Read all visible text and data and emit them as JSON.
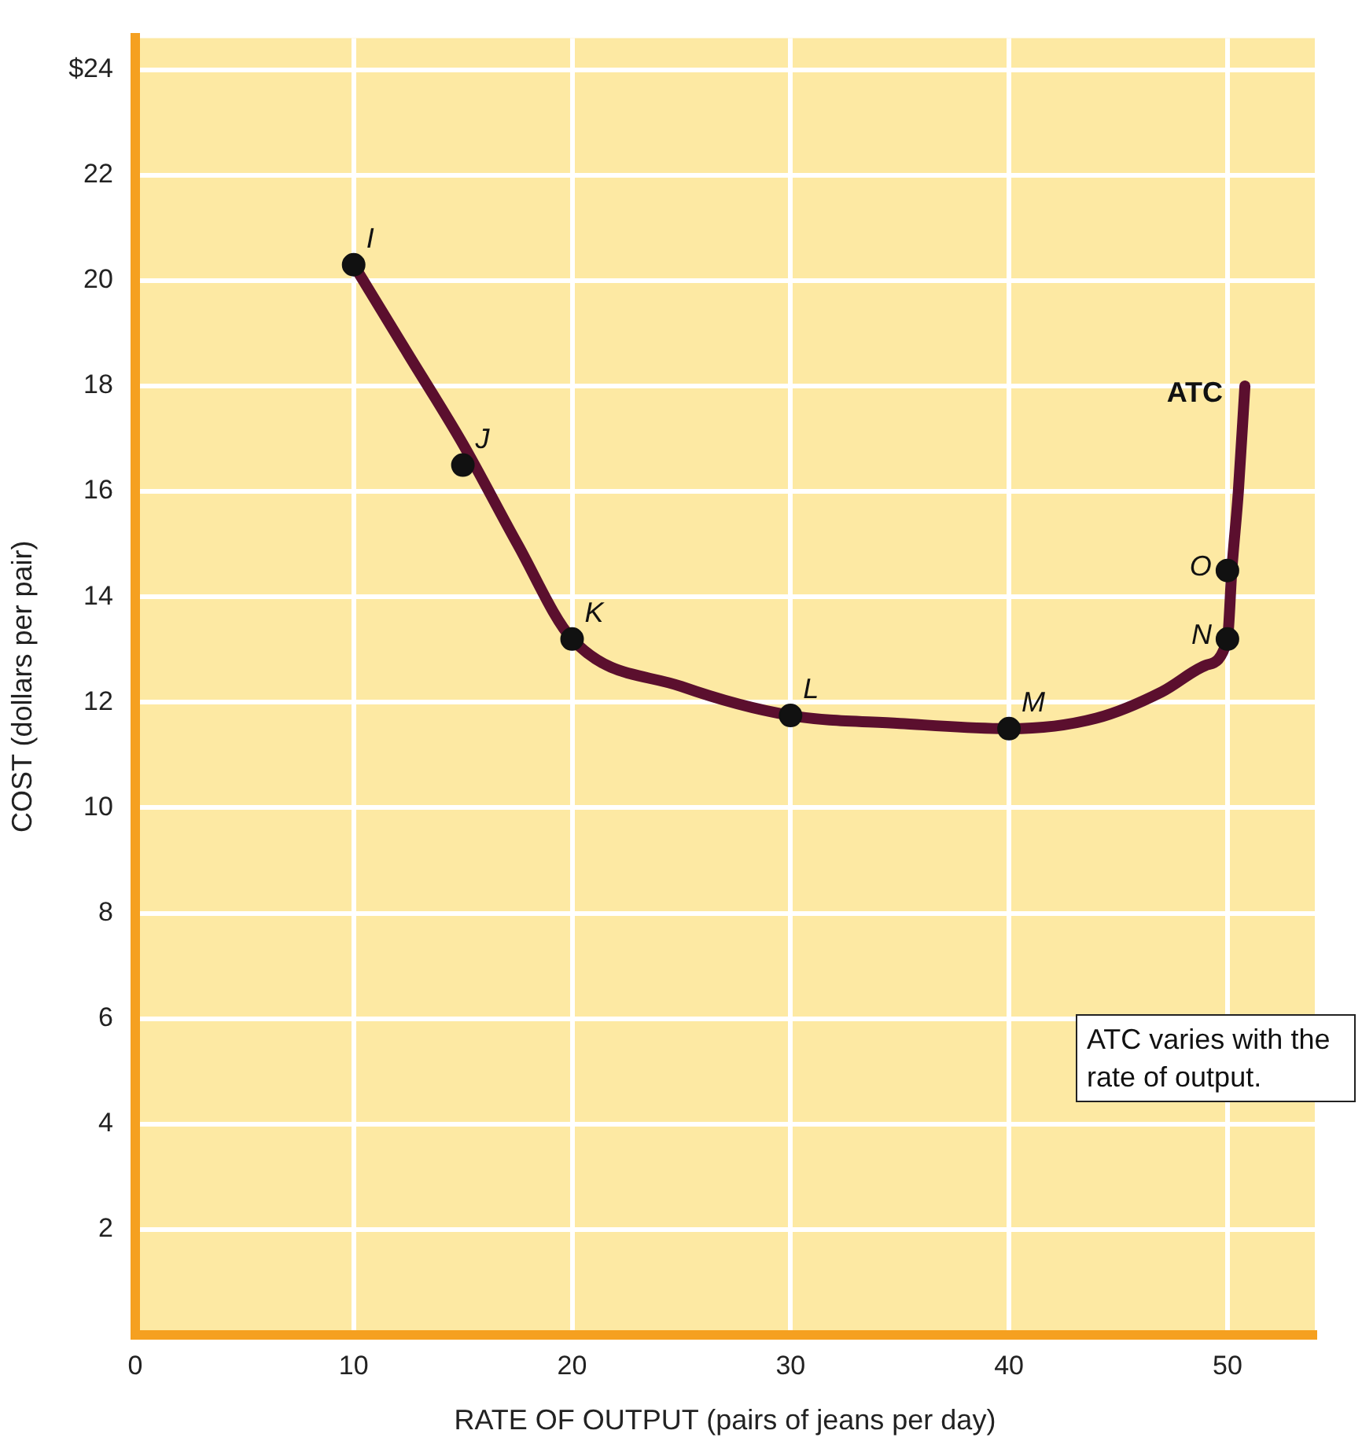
{
  "chart_data": {
    "type": "line",
    "xlabel": "RATE OF OUTPUT (pairs of jeans per day)",
    "ylabel": "COST (dollars per pair)",
    "xlim": [
      0,
      54
    ],
    "ylim": [
      0,
      24.6
    ],
    "xticks": [
      0,
      10,
      20,
      30,
      40,
      50
    ],
    "yticks": [
      2,
      4,
      6,
      8,
      10,
      12,
      14,
      16,
      18,
      20,
      22,
      {
        "value": 24,
        "label": "$24"
      }
    ],
    "grid": true,
    "legend": false,
    "series": [
      {
        "type": "line",
        "color": "#5b0f2e",
        "marker": "none",
        "x": [
          10,
          12.5,
          15,
          17.5,
          20,
          25,
          30,
          35,
          40,
          44,
          47,
          49,
          50,
          50.2,
          50.5,
          50.8
        ],
        "values": [
          20.3,
          18.6,
          16.9,
          15,
          13.2,
          12.3,
          11.75,
          11.6,
          11.5,
          11.7,
          12.2,
          12.7,
          13.2,
          14.5,
          16,
          18
        ]
      },
      {
        "type": "scatter",
        "color": "#111111",
        "marker": "circle",
        "x": [
          10,
          15,
          20,
          30,
          40,
          50,
          50
        ],
        "values": [
          20.3,
          16.5,
          13.2,
          11.75,
          11.5,
          13.2,
          14.5
        ]
      }
    ],
    "annotations": [
      {
        "text": "I",
        "x": 10,
        "y": 20.3
      },
      {
        "text": "J",
        "x": 15,
        "y": 16.5
      },
      {
        "text": "K",
        "x": 20,
        "y": 13.2
      },
      {
        "text": "L",
        "x": 30,
        "y": 11.75
      },
      {
        "text": "M",
        "x": 40,
        "y": 11.5
      },
      {
        "text": "N",
        "x": 50,
        "y": 13.2
      },
      {
        "text": "O",
        "x": 50,
        "y": 14.5
      },
      {
        "text": "ATC",
        "x": 50.8,
        "y": 18
      },
      "ATC varies with the rate of output."
    ]
  }
}
